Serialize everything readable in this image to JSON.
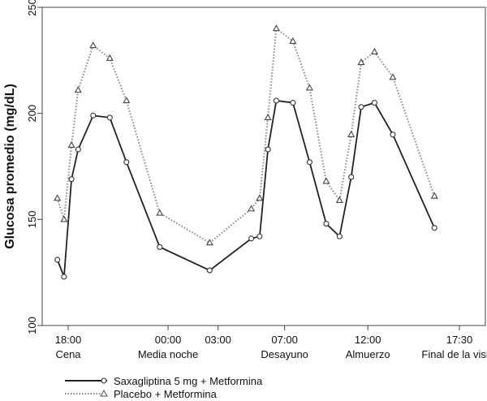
{
  "chart_data": {
    "type": "line",
    "title": "",
    "xlabel": "",
    "ylabel": "Glucosa promedio (mg/dL)",
    "ylim": [
      100,
      250
    ],
    "yticks": [
      100,
      150,
      200,
      250
    ],
    "xlim": [
      17,
      42
    ],
    "xticks": [
      {
        "x": 18,
        "time": "18:00",
        "label": "Cena"
      },
      {
        "x": 24,
        "time": "00:00",
        "label": "Media noche"
      },
      {
        "x": 27,
        "time": "03:00",
        "label": ""
      },
      {
        "x": 31,
        "time": "07:00",
        "label": "Desayuno"
      },
      {
        "x": 36,
        "time": "12:00",
        "label": "Almuerzo"
      },
      {
        "x": 41.5,
        "time": "17:30",
        "label": "Final de la visita"
      }
    ],
    "grid": false,
    "legend_position": "bottom-left",
    "series": [
      {
        "name": "Saxagliptina 5 mg + Metformina",
        "line_style": "solid",
        "marker": "circle",
        "color": "#222222",
        "points": [
          [
            17.35,
            131
          ],
          [
            17.75,
            123
          ],
          [
            18.2,
            169
          ],
          [
            18.6,
            183
          ],
          [
            19.5,
            199
          ],
          [
            20.5,
            198
          ],
          [
            21.5,
            177
          ],
          [
            23.5,
            137
          ],
          [
            26.5,
            126
          ],
          [
            29.0,
            141
          ],
          [
            29.5,
            142
          ],
          [
            30.0,
            183
          ],
          [
            30.5,
            206
          ],
          [
            31.5,
            205
          ],
          [
            32.5,
            177
          ],
          [
            33.5,
            148
          ],
          [
            34.3,
            142
          ],
          [
            35.0,
            170
          ],
          [
            35.6,
            203
          ],
          [
            36.4,
            205
          ],
          [
            37.5,
            190
          ],
          [
            40.0,
            146
          ]
        ]
      },
      {
        "name": "Placebo + Metformina",
        "line_style": "dotted",
        "marker": "triangle",
        "color": "#888888",
        "points": [
          [
            17.35,
            160
          ],
          [
            17.75,
            150
          ],
          [
            18.2,
            185
          ],
          [
            18.6,
            211
          ],
          [
            19.5,
            232
          ],
          [
            20.5,
            226
          ],
          [
            21.5,
            206
          ],
          [
            23.5,
            153
          ],
          [
            26.5,
            139
          ],
          [
            29.0,
            155
          ],
          [
            29.5,
            160
          ],
          [
            30.0,
            198
          ],
          [
            30.5,
            240
          ],
          [
            31.5,
            234
          ],
          [
            32.5,
            212
          ],
          [
            33.5,
            168
          ],
          [
            34.3,
            159
          ],
          [
            35.0,
            190
          ],
          [
            35.6,
            224
          ],
          [
            36.4,
            229
          ],
          [
            37.5,
            217
          ],
          [
            40.0,
            161
          ]
        ]
      }
    ]
  }
}
